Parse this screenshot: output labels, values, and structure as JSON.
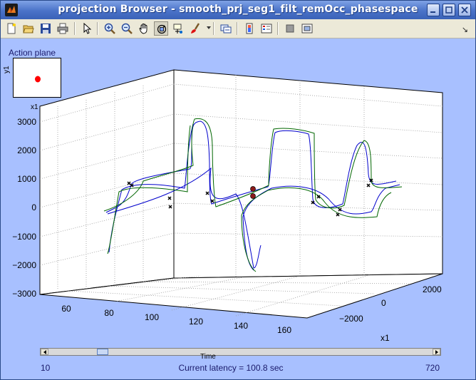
{
  "window": {
    "title": "projection Browser - smooth_prj_seg1_filt_remOcc_phasespace",
    "controls": [
      "minimize-icon",
      "maximize-icon",
      "close-icon"
    ]
  },
  "toolbar": {
    "items": [
      "new-figure-icon",
      "open-file-icon",
      "save-icon",
      "print-icon",
      "pointer-icon",
      "zoom-in-icon",
      "zoom-out-icon",
      "pan-hand-icon",
      "rotate-3d-icon",
      "data-cursor-icon",
      "brush-icon",
      "link-icon",
      "colorbar-icon",
      "legend-icon",
      "hide-tools-icon",
      "show-tools-icon"
    ],
    "dock_arrow": "↘"
  },
  "inset": {
    "title": "Action plane",
    "ylabel": "y1",
    "xlabel": "x1",
    "marker_color": "#ff0000"
  },
  "plot": {
    "z_ticks": [
      "3000",
      "2000",
      "1000",
      "0",
      "−1000",
      "−2000",
      "−3000"
    ],
    "time_ticks": [
      "60",
      "80",
      "100",
      "120",
      "140",
      "160"
    ],
    "x1_ticks": [
      "2000",
      "0",
      "−2000"
    ],
    "x1_label": "x1",
    "colors": {
      "series_a": "#0000cc",
      "series_b": "#006600",
      "markers": "#000000",
      "highlight": "#8b1a1a"
    }
  },
  "slider": {
    "caption": "Time",
    "min": "10",
    "max": "720",
    "value_fraction": 0.13
  },
  "status": {
    "latency": "Current latency = 100.8 sec"
  }
}
